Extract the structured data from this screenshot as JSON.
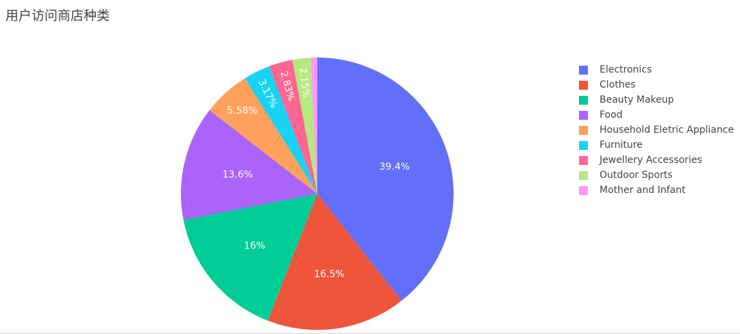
{
  "chart_data": {
    "type": "pie",
    "title": "用户访问商店种类",
    "labels": [
      "Electronics",
      "Clothes",
      "Beauty Makeup",
      "Food",
      "Household Eletric Appliance",
      "Furniture",
      "Jewellery Accessories",
      "Outdoor Sports",
      "Mother and Infant"
    ],
    "values": [
      39.4,
      16.5,
      16.0,
      13.6,
      5.58,
      3.17,
      2.83,
      2.15,
      0.77
    ],
    "text_labels": [
      "39.4%",
      "16.5%",
      "16%",
      "13.6%",
      "5.58%",
      "3.17%",
      "2.83%",
      "2.15%",
      ""
    ],
    "colors": [
      "#636efa",
      "#ef553b",
      "#00cc96",
      "#ab63fa",
      "#ffa15a",
      "#19d3f3",
      "#ff6692",
      "#b6e880",
      "#ff97ff"
    ],
    "direction": "clockwise",
    "start_angle": "top",
    "legend_position": "right"
  }
}
